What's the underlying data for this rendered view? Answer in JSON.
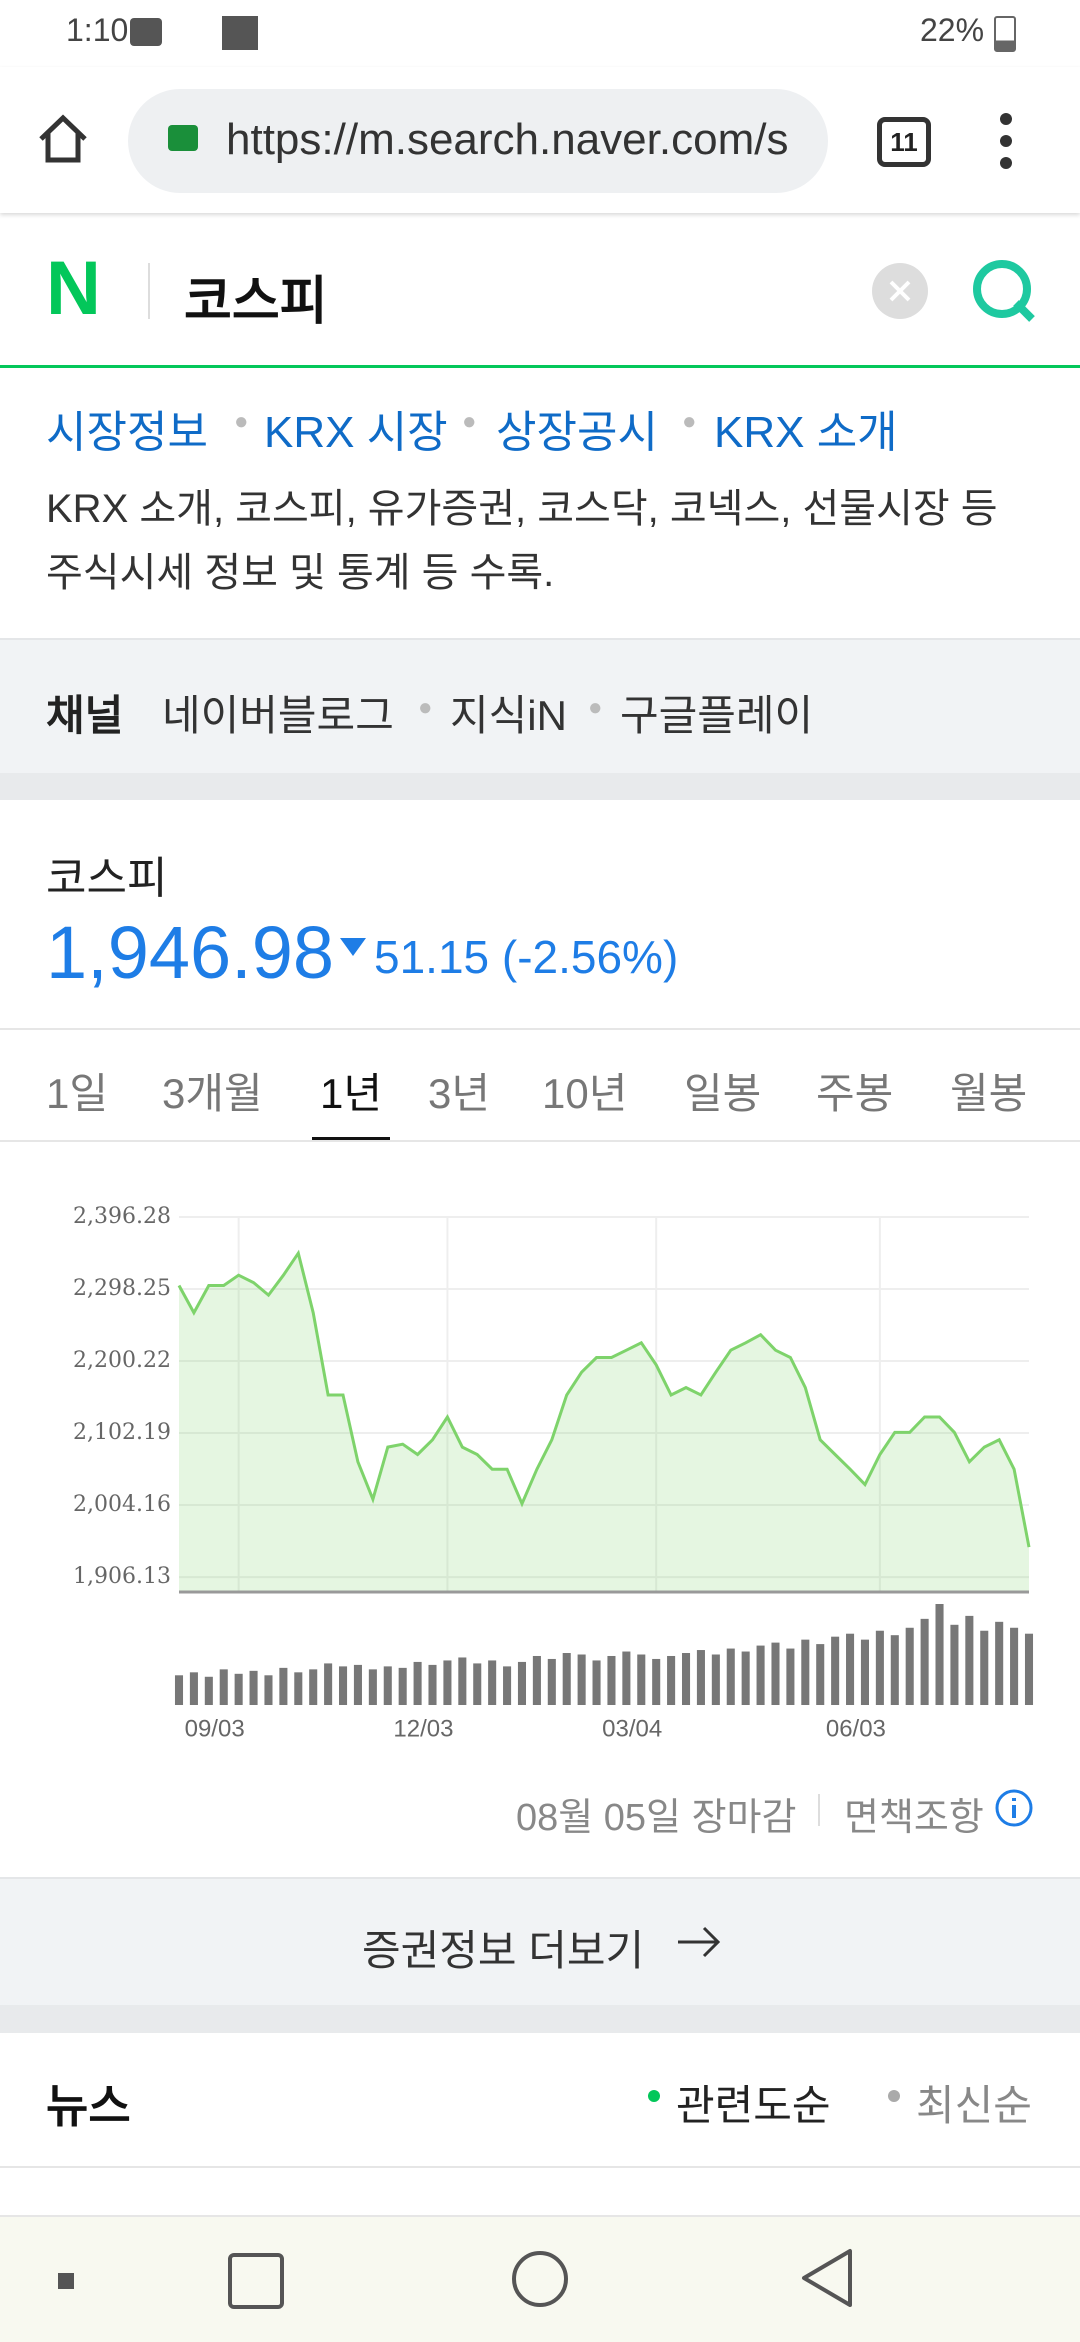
{
  "status_bar": {
    "time": "1:10",
    "battery": "22%"
  },
  "browser": {
    "url": "https://m.search.naver.com/s",
    "tab_count": "11"
  },
  "search": {
    "logo": "N",
    "query": "코스피"
  },
  "links": [
    "시장정보",
    "KRX 시장",
    "상장공시",
    "KRX 소개"
  ],
  "description": [
    "KRX 소개, 코스피, 유가증권, 코스닥, 코넥스, 선물시장 등",
    "주식시세 정보 및 통계 등 수록."
  ],
  "channel": {
    "label": "채널",
    "items": [
      "네이버블로그",
      "지식iN",
      "구글플레이"
    ]
  },
  "stock": {
    "name": "코스피",
    "price": "1,946.98",
    "change": "51.15 (-2.56%)"
  },
  "tabs": [
    "1일",
    "3개월",
    "1년",
    "3년",
    "10년",
    "일봉",
    "주봉",
    "월봉"
  ],
  "active_tab": 2,
  "chart_data": {
    "type": "area",
    "color": "#7ed36b",
    "categories": [
      null,
      null,
      null,
      null,
      "09/03",
      null,
      null,
      null,
      null,
      null,
      null,
      null,
      null,
      null,
      null,
      null,
      null,
      null,
      "12/03",
      null,
      null,
      null,
      null,
      null,
      null,
      null,
      null,
      null,
      null,
      null,
      null,
      null,
      "03/04",
      null,
      null,
      null,
      null,
      null,
      null,
      null,
      null,
      null,
      null,
      null,
      null,
      null,
      null,
      "06/03",
      null,
      null,
      null,
      null,
      null,
      null,
      null,
      null,
      null,
      null
    ],
    "values": [
      2303,
      2266,
      2303,
      2303,
      2317,
      2307,
      2290,
      2317,
      2347,
      2266,
      2154,
      2154,
      2063,
      2012,
      2083,
      2087,
      2073,
      2093,
      2124,
      2083,
      2073,
      2053,
      2053,
      2006,
      2053,
      2093,
      2154,
      2185,
      2205,
      2205,
      2215,
      2225,
      2195,
      2154,
      2164,
      2154,
      2185,
      2215,
      2225,
      2236,
      2215,
      2205,
      2164,
      2093,
      2073,
      2053,
      2032,
      2073,
      2103,
      2103,
      2124,
      2124,
      2103,
      2063,
      2083,
      2093,
      2053,
      1946.98
    ],
    "volume": [
      20,
      22,
      19,
      24,
      21,
      23,
      20,
      25,
      22,
      24,
      28,
      26,
      27,
      24,
      26,
      25,
      29,
      27,
      30,
      32,
      28,
      30,
      26,
      29,
      33,
      31,
      35,
      34,
      30,
      33,
      36,
      34,
      31,
      33,
      35,
      37,
      34,
      38,
      36,
      40,
      42,
      38,
      44,
      41,
      46,
      48,
      44,
      50,
      47,
      52,
      58,
      68,
      54,
      60,
      50,
      56,
      52,
      48
    ],
    "ylim": [
      1885.8,
      2396.28
    ],
    "yticks": [
      {
        "value": 1906.13,
        "label": "1,906.13"
      },
      {
        "value": 2004.16,
        "label": "2,004.16"
      },
      {
        "value": 2102.19,
        "label": "2,102.19"
      },
      {
        "value": 2200.22,
        "label": "2,200.22"
      },
      {
        "value": 2298.25,
        "label": "2,298.25"
      },
      {
        "value": 2396.28,
        "label": "2,396.28"
      }
    ],
    "grid": true
  },
  "chart_footer": {
    "close": "08월 05일 장마감",
    "disclaimer": "면책조항"
  },
  "more_button": "증권정보 더보기",
  "news": {
    "title": "뉴스",
    "sort": [
      "관련도순",
      "최신순"
    ]
  }
}
